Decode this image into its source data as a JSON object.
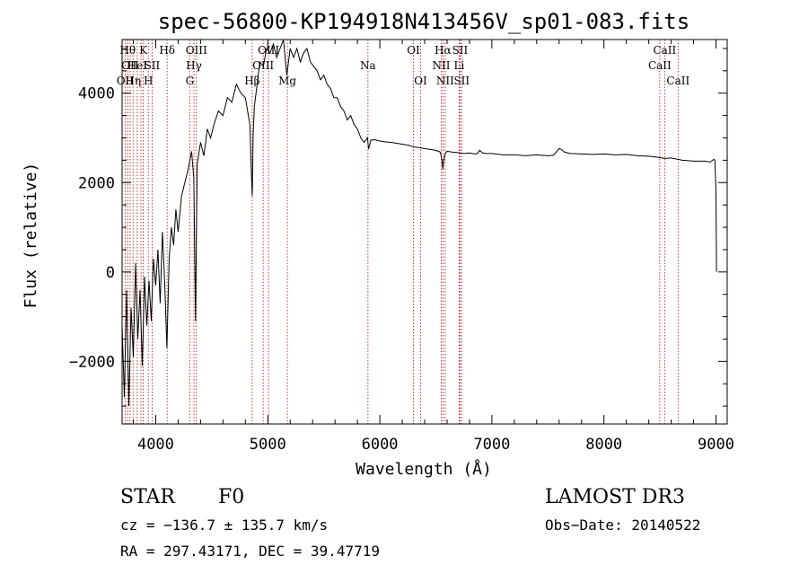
{
  "chart_data": {
    "type": "line",
    "title": "spec-56800-KP194918N413456V_sp01-083.fits",
    "xlabel": "Wavelength (Å)",
    "ylabel": "Flux (relative)",
    "xlim": [
      3700,
      9100
    ],
    "ylim": [
      -3400,
      5200
    ],
    "xticks": [
      {
        "value": 4000,
        "label": "4000"
      },
      {
        "value": 5000,
        "label": "5000"
      },
      {
        "value": 6000,
        "label": "6000"
      },
      {
        "value": 7000,
        "label": "7000"
      },
      {
        "value": 8000,
        "label": "8000"
      },
      {
        "value": 9000,
        "label": "9000"
      }
    ],
    "yticks": [
      {
        "value": -2000,
        "label": "−2000"
      },
      {
        "value": 0,
        "label": "0"
      },
      {
        "value": 2000,
        "label": "2000"
      },
      {
        "value": 4000,
        "label": "4000"
      }
    ],
    "series": [
      {
        "name": "spectrum",
        "x": [
          3700,
          3720,
          3740,
          3760,
          3780,
          3800,
          3820,
          3840,
          3860,
          3880,
          3900,
          3920,
          3940,
          3960,
          3980,
          4000,
          4020,
          4040,
          4060,
          4080,
          4100,
          4120,
          4140,
          4160,
          4180,
          4200,
          4230,
          4260,
          4290,
          4320,
          4340,
          4355,
          4370,
          4400,
          4430,
          4460,
          4490,
          4520,
          4560,
          4600,
          4640,
          4680,
          4720,
          4760,
          4800,
          4840,
          4855,
          4862,
          4870,
          4880,
          4900,
          4930,
          4960,
          4990,
          5020,
          5050,
          5080,
          5110,
          5140,
          5170,
          5200,
          5230,
          5260,
          5290,
          5320,
          5350,
          5380,
          5410,
          5440,
          5470,
          5500,
          5530,
          5560,
          5590,
          5620,
          5650,
          5680,
          5710,
          5740,
          5770,
          5800,
          5830,
          5860,
          5890,
          5900,
          5920,
          5950,
          6000,
          6050,
          6100,
          6150,
          6200,
          6250,
          6300,
          6350,
          6400,
          6450,
          6500,
          6540,
          6555,
          6563,
          6570,
          6585,
          6600,
          6650,
          6700,
          6750,
          6800,
          6850,
          6870,
          6890,
          6920,
          6950,
          7000,
          7100,
          7200,
          7300,
          7400,
          7500,
          7550,
          7600,
          7620,
          7650,
          7700,
          7800,
          7900,
          8000,
          8100,
          8200,
          8300,
          8400,
          8500,
          8542,
          8600,
          8662,
          8700,
          8800,
          8900,
          8950,
          8980,
          8990,
          9000,
          9005
        ],
        "y": [
          -1200,
          -2800,
          -400,
          -3000,
          -800,
          -1900,
          200,
          -1500,
          -400,
          -2100,
          -100,
          -1200,
          -200,
          -1100,
          300,
          -300,
          500,
          -700,
          900,
          -200,
          -1700,
          300,
          1000,
          600,
          1400,
          900,
          1700,
          2000,
          2300,
          2700,
          2100,
          -1100,
          2400,
          2900,
          2600,
          3200,
          3000,
          3300,
          3600,
          3500,
          3900,
          3800,
          4200,
          4000,
          3900,
          3300,
          2100,
          1700,
          3100,
          3700,
          4100,
          4700,
          4600,
          5000,
          4900,
          5100,
          4800,
          5000,
          5200,
          4400,
          5000,
          4800,
          5000,
          4700,
          4900,
          5000,
          4700,
          4600,
          4500,
          4300,
          4400,
          4200,
          4100,
          3900,
          3900,
          3700,
          3600,
          3400,
          3500,
          3300,
          3200,
          3000,
          2900,
          3000,
          2750,
          2950,
          2960,
          2930,
          2910,
          2900,
          2880,
          2860,
          2840,
          2800,
          2780,
          2760,
          2740,
          2720,
          2680,
          2500,
          2300,
          2500,
          2660,
          2700,
          2680,
          2670,
          2650,
          2660,
          2640,
          2650,
          2720,
          2660,
          2650,
          2650,
          2620,
          2620,
          2600,
          2620,
          2600,
          2610,
          2760,
          2740,
          2680,
          2650,
          2640,
          2630,
          2640,
          2620,
          2630,
          2600,
          2590,
          2560,
          2540,
          2550,
          2520,
          2500,
          2480,
          2480,
          2460,
          2520,
          2500,
          1800,
          0
        ]
      }
    ],
    "line_markers": [
      {
        "wavelength": 3727,
        "label": "OII",
        "row": 3
      },
      {
        "wavelength": 3750,
        "label": "Hθ",
        "row": 1
      },
      {
        "wavelength": 3771,
        "label": "OII",
        "row": 2
      },
      {
        "wavelength": 3798,
        "label": "Hη",
        "row": 3
      },
      {
        "wavelength": 3835,
        "label": "HeI",
        "row": 2
      },
      {
        "wavelength": 3869,
        "label": "",
        "row": 0
      },
      {
        "wavelength": 3889,
        "label": "K",
        "row": 1
      },
      {
        "wavelength": 3934,
        "label": "H",
        "row": 3
      },
      {
        "wavelength": 3968,
        "label": "SII",
        "row": 2
      },
      {
        "wavelength": 4102,
        "label": "Hδ",
        "row": 1
      },
      {
        "wavelength": 4304,
        "label": "G",
        "row": 3
      },
      {
        "wavelength": 4341,
        "label": "Hγ",
        "row": 2
      },
      {
        "wavelength": 4363,
        "label": "OIII",
        "row": 1
      },
      {
        "wavelength": 4861,
        "label": "Hβ",
        "row": 3
      },
      {
        "wavelength": 4959,
        "label": "OIII",
        "row": 2
      },
      {
        "wavelength": 5007,
        "label": "OIII",
        "row": 1
      },
      {
        "wavelength": 5175,
        "label": "Mg",
        "row": 3
      },
      {
        "wavelength": 5894,
        "label": "Na",
        "row": 2
      },
      {
        "wavelength": 6300,
        "label": "OI",
        "row": 1
      },
      {
        "wavelength": 6364,
        "label": "OI",
        "row": 3
      },
      {
        "wavelength": 6548,
        "label": "NII",
        "row": 2
      },
      {
        "wavelength": 6563,
        "label": "Hα",
        "row": 1
      },
      {
        "wavelength": 6583,
        "label": "NII",
        "row": 3
      },
      {
        "wavelength": 6716,
        "label": "SII",
        "row": 1
      },
      {
        "wavelength": 6731,
        "label": "SII",
        "row": 3
      },
      {
        "wavelength": 6708,
        "label": "Li",
        "row": 2
      },
      {
        "wavelength": 8498,
        "label": "CaII",
        "row": 2
      },
      {
        "wavelength": 8542,
        "label": "CaII",
        "row": 1
      },
      {
        "wavelength": 8662,
        "label": "CaII",
        "row": 3
      }
    ],
    "grid": false
  },
  "info": {
    "class_label": "STAR",
    "subclass_label": "F0",
    "survey": "LAMOST DR3",
    "cz": "cz = −136.7 ± 135.7 km/s",
    "obs_date": "Obs−Date: 20140522",
    "coords": "RA = 297.43171, DEC =  39.47719"
  },
  "colors": {
    "spectrum": "#000000",
    "line_marker": "#b22222"
  }
}
